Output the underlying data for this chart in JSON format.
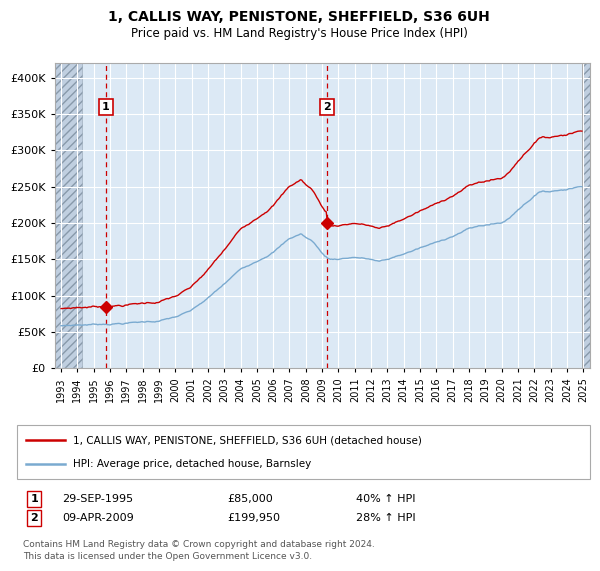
{
  "title_line1": "1, CALLIS WAY, PENISTONE, SHEFFIELD, S36 6UH",
  "title_line2": "Price paid vs. HM Land Registry's House Price Index (HPI)",
  "ylim": [
    0,
    420000
  ],
  "xlim_start": 1992.6,
  "xlim_end": 2025.4,
  "sale1_date": 1995.75,
  "sale1_price": 85000,
  "sale2_date": 2009.27,
  "sale2_price": 199950,
  "legend_line1": "1, CALLIS WAY, PENISTONE, SHEFFIELD, S36 6UH (detached house)",
  "legend_line2": "HPI: Average price, detached house, Barnsley",
  "table_row1_label": "1",
  "table_row1_date": "29-SEP-1995",
  "table_row1_price": "£85,000",
  "table_row1_hpi": "40% ↑ HPI",
  "table_row2_label": "2",
  "table_row2_date": "09-APR-2009",
  "table_row2_price": "£199,950",
  "table_row2_hpi": "28% ↑ HPI",
  "footer": "Contains HM Land Registry data © Crown copyright and database right 2024.\nThis data is licensed under the Open Government Licence v3.0.",
  "red_color": "#cc0000",
  "blue_color": "#7aaad0",
  "bg_color": "#dce9f5",
  "hatch_color": "#c0cfe0",
  "grid_color": "#ffffff",
  "yticks": [
    0,
    50000,
    100000,
    150000,
    200000,
    250000,
    300000,
    350000,
    400000
  ],
  "ytick_labels": [
    "£0",
    "£50K",
    "£100K",
    "£150K",
    "£200K",
    "£250K",
    "£300K",
    "£350K",
    "£400K"
  ]
}
